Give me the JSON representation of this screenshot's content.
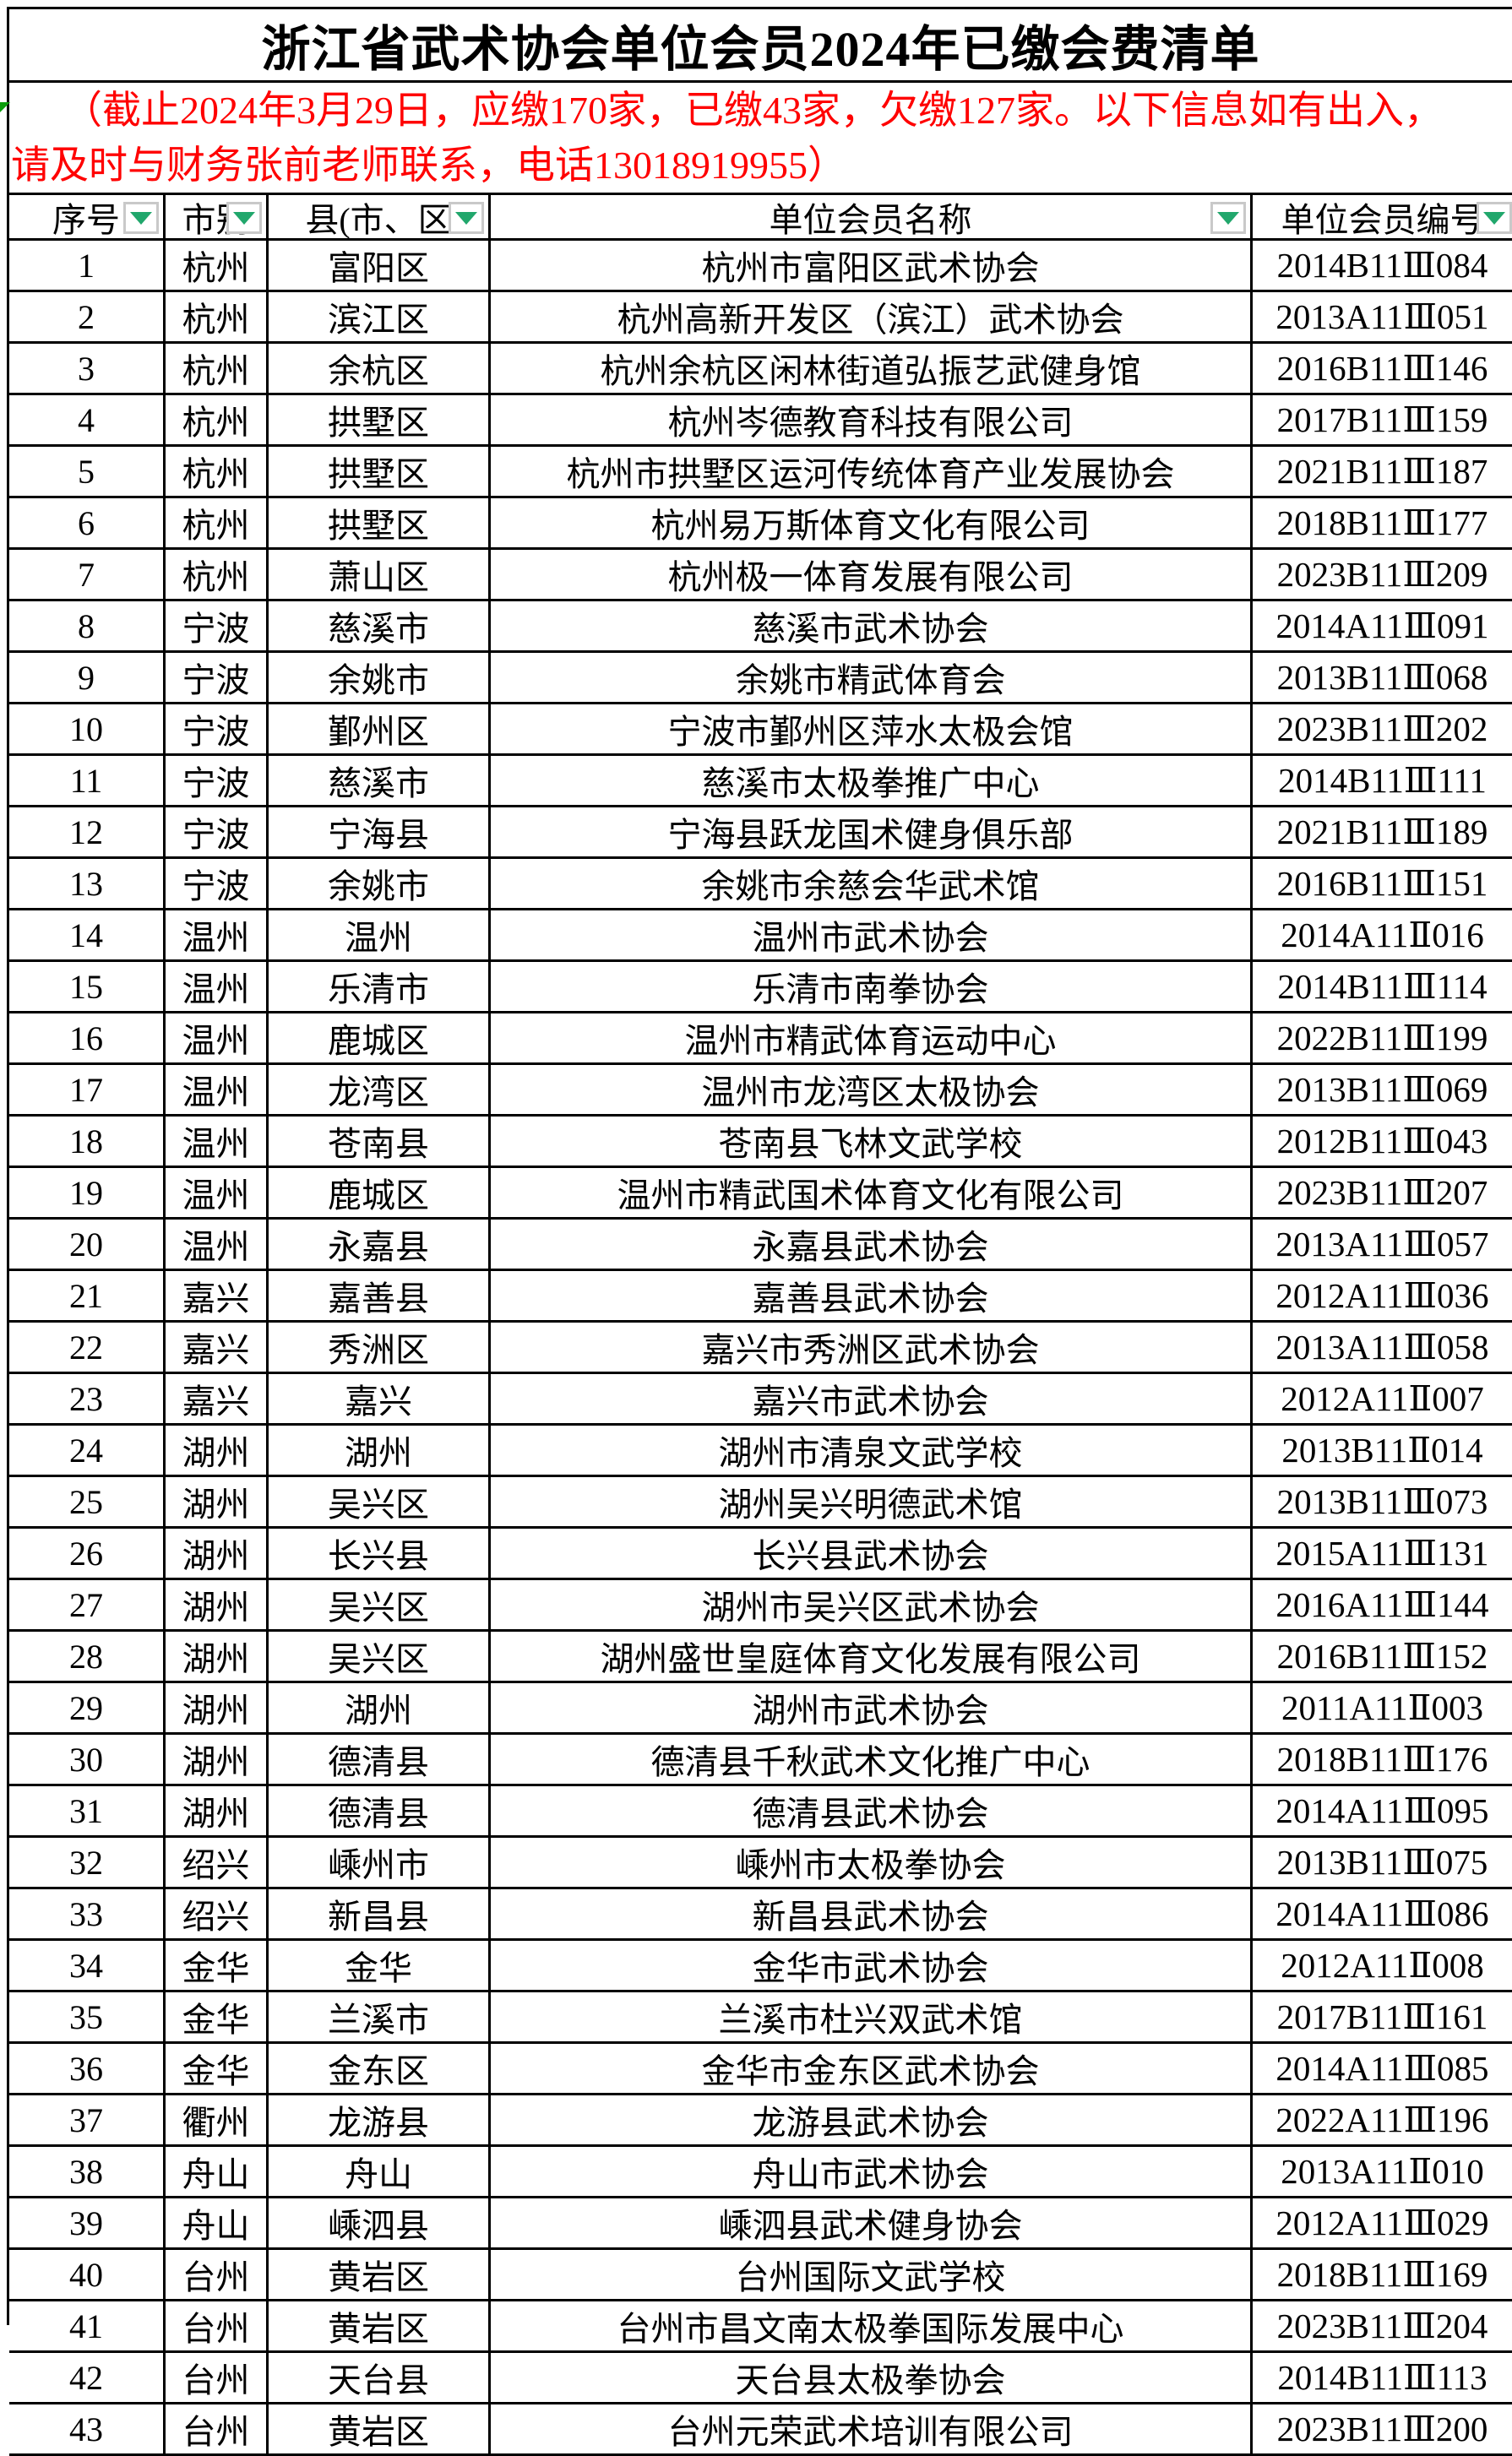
{
  "title": "浙江省武术协会单位会员2024年已缴会费清单",
  "notice": {
    "line1": "（截止2024年3月29日，应缴170家，已缴43家，欠缴127家。以下信息如有出入，",
    "line2": "请及时与财务张前老师联系，电话13018919955）",
    "color": "#ff0000"
  },
  "table": {
    "columns": [
      {
        "label": "序号",
        "filter": true
      },
      {
        "label": "市别",
        "filter": true
      },
      {
        "label": "县(市、区",
        "filter": true
      },
      {
        "label": "单位会员名称",
        "filter": true
      },
      {
        "label": "单位会员编号",
        "filter": true
      }
    ],
    "rows": [
      [
        "1",
        "杭州",
        "富阳区",
        "杭州市富阳区武术协会",
        "2014B11Ⅲ084"
      ],
      [
        "2",
        "杭州",
        "滨江区",
        "杭州高新开发区（滨江）武术协会",
        "2013A11Ⅲ051"
      ],
      [
        "3",
        "杭州",
        "余杭区",
        "杭州余杭区闲林街道弘振艺武健身馆",
        "2016B11Ⅲ146"
      ],
      [
        "4",
        "杭州",
        "拱墅区",
        "杭州岑德教育科技有限公司",
        "2017B11Ⅲ159"
      ],
      [
        "5",
        "杭州",
        "拱墅区",
        "杭州市拱墅区运河传统体育产业发展协会",
        "2021B11Ⅲ187"
      ],
      [
        "6",
        "杭州",
        "拱墅区",
        "杭州易万斯体育文化有限公司",
        "2018B11Ⅲ177"
      ],
      [
        "7",
        "杭州",
        "萧山区",
        "杭州极一体育发展有限公司",
        "2023B11Ⅲ209"
      ],
      [
        "8",
        "宁波",
        "慈溪市",
        "慈溪市武术协会",
        "2014A11Ⅲ091"
      ],
      [
        "9",
        "宁波",
        "余姚市",
        "余姚市精武体育会",
        "2013B11Ⅲ068"
      ],
      [
        "10",
        "宁波",
        "鄞州区",
        "宁波市鄞州区萍水太极会馆",
        "2023B11Ⅲ202"
      ],
      [
        "11",
        "宁波",
        "慈溪市",
        "慈溪市太极拳推广中心",
        "2014B11Ⅲ111"
      ],
      [
        "12",
        "宁波",
        "宁海县",
        "宁海县跃龙国术健身俱乐部",
        "2021B11Ⅲ189"
      ],
      [
        "13",
        "宁波",
        "余姚市",
        "余姚市余慈会华武术馆",
        "2016B11Ⅲ151"
      ],
      [
        "14",
        "温州",
        "温州",
        "温州市武术协会",
        "2014A11Ⅱ016"
      ],
      [
        "15",
        "温州",
        "乐清市",
        "乐清市南拳协会",
        "2014B11Ⅲ114"
      ],
      [
        "16",
        "温州",
        "鹿城区",
        "温州市精武体育运动中心",
        "2022B11Ⅲ199"
      ],
      [
        "17",
        "温州",
        "龙湾区",
        "温州市龙湾区太极协会",
        "2013B11Ⅲ069"
      ],
      [
        "18",
        "温州",
        "苍南县",
        "苍南县飞林文武学校",
        "2012B11Ⅲ043"
      ],
      [
        "19",
        "温州",
        "鹿城区",
        "温州市精武国术体育文化有限公司",
        "2023B11Ⅲ207"
      ],
      [
        "20",
        "温州",
        "永嘉县",
        "永嘉县武术协会",
        "2013A11Ⅲ057"
      ],
      [
        "21",
        "嘉兴",
        "嘉善县",
        "嘉善县武术协会",
        "2012A11Ⅲ036"
      ],
      [
        "22",
        "嘉兴",
        "秀洲区",
        "嘉兴市秀洲区武术协会",
        "2013A11Ⅲ058"
      ],
      [
        "23",
        "嘉兴",
        "嘉兴",
        "嘉兴市武术协会",
        "2012A11Ⅱ007"
      ],
      [
        "24",
        "湖州",
        "湖州",
        "湖州市清泉文武学校",
        "2013B11Ⅱ014"
      ],
      [
        "25",
        "湖州",
        "吴兴区",
        "湖州吴兴明德武术馆",
        "2013B11Ⅲ073"
      ],
      [
        "26",
        "湖州",
        "长兴县",
        "长兴县武术协会",
        "2015A11Ⅲ131"
      ],
      [
        "27",
        "湖州",
        "吴兴区",
        "湖州市吴兴区武术协会",
        "2016A11Ⅲ144"
      ],
      [
        "28",
        "湖州",
        "吴兴区",
        "湖州盛世皇庭体育文化发展有限公司",
        "2016B11Ⅲ152"
      ],
      [
        "29",
        "湖州",
        "湖州",
        "湖州市武术协会",
        "2011A11Ⅱ003"
      ],
      [
        "30",
        "湖州",
        "德清县",
        "德清县千秋武术文化推广中心",
        "2018B11Ⅲ176"
      ],
      [
        "31",
        "湖州",
        "德清县",
        "德清县武术协会",
        "2014A11Ⅲ095"
      ],
      [
        "32",
        "绍兴",
        "嵊州市",
        "嵊州市太极拳协会",
        "2013B11Ⅲ075"
      ],
      [
        "33",
        "绍兴",
        "新昌县",
        "新昌县武术协会",
        "2014A11Ⅲ086"
      ],
      [
        "34",
        "金华",
        "金华",
        "金华市武术协会",
        "2012A11Ⅱ008"
      ],
      [
        "35",
        "金华",
        "兰溪市",
        "兰溪市杜兴双武术馆",
        "2017B11Ⅲ161"
      ],
      [
        "36",
        "金华",
        "金东区",
        "金华市金东区武术协会",
        "2014A11Ⅲ085"
      ],
      [
        "37",
        "衢州",
        "龙游县",
        "龙游县武术协会",
        "2022A11Ⅲ196"
      ],
      [
        "38",
        "舟山",
        "舟山",
        "舟山市武术协会",
        "2013A11Ⅱ010"
      ],
      [
        "39",
        "舟山",
        "嵊泗县",
        "嵊泗县武术健身协会",
        "2012A11Ⅲ029"
      ],
      [
        "40",
        "台州",
        "黄岩区",
        "台州国际文武学校",
        "2018B11Ⅲ169"
      ],
      [
        "41",
        "台州",
        "黄岩区",
        "台州市昌文南太极拳国际发展中心",
        "2023B11Ⅲ204"
      ],
      [
        "42",
        "台州",
        "天台县",
        "天台县太极拳协会",
        "2014B11Ⅲ113"
      ],
      [
        "43",
        "台州",
        "黄岩区",
        "台州元荣武术培训有限公司",
        "2023B11Ⅲ200"
      ]
    ]
  },
  "icons": {
    "filter_arrow": "green down-triangle autofilter button",
    "error_indicator": "green corner triangle"
  },
  "colors": {
    "note_red": "#ff0000",
    "filter_green": "#21a76c",
    "indicator_green": "#0a9c0a",
    "grid": "#000000",
    "background": "#ffffff"
  }
}
